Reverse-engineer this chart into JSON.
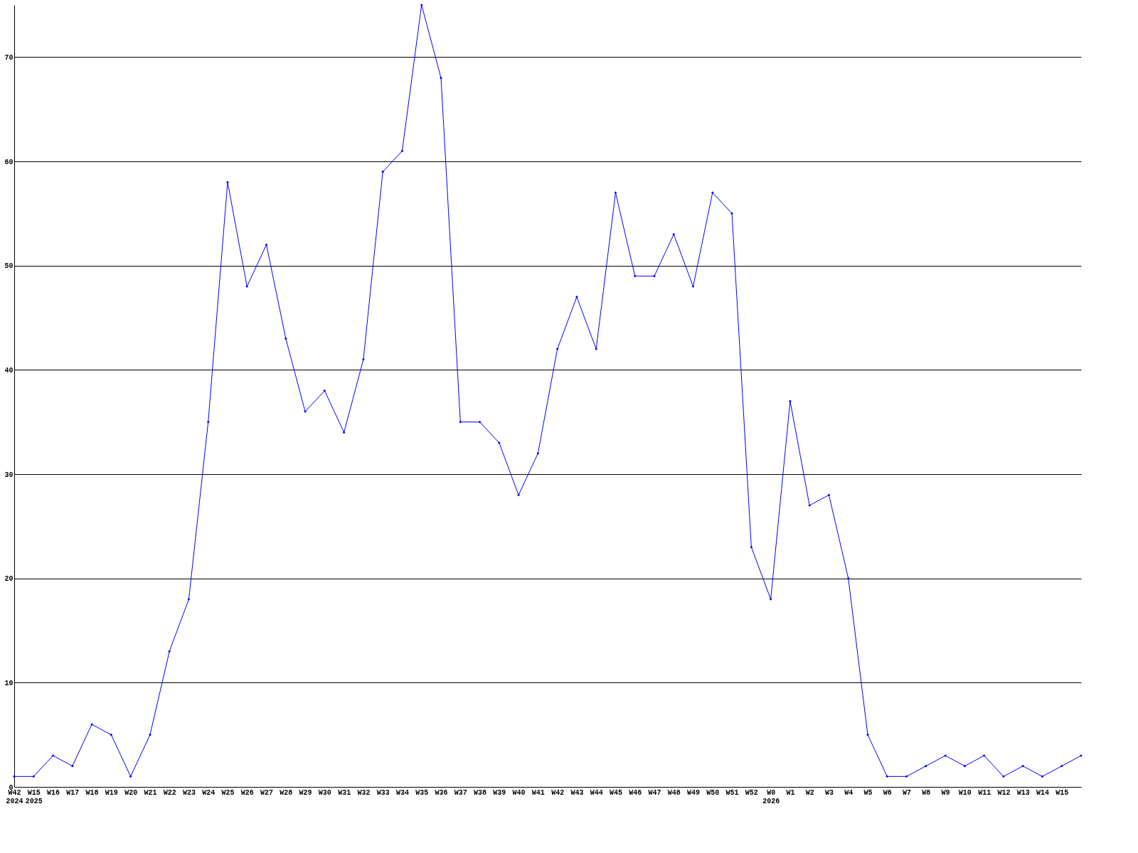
{
  "chart_data": {
    "type": "line",
    "categories": [
      "W42\n2024",
      "W15\n2025",
      "W16",
      "W17",
      "W18",
      "W19",
      "W20",
      "W21",
      "W22",
      "W23",
      "W24",
      "W25",
      "W26",
      "W27",
      "W28",
      "W29",
      "W30",
      "W31",
      "W32",
      "W33",
      "W34",
      "W35",
      "W36",
      "W37",
      "W38",
      "W39",
      "W40",
      "W41",
      "W42",
      "W43",
      "W44",
      "W45",
      "W46",
      "W47",
      "W48",
      "W49",
      "W50",
      "W51",
      "W52",
      "W0\n2026",
      "W1",
      "W2",
      "W3",
      "W4",
      "W5",
      "W6",
      "W7",
      "W8",
      "W9",
      "W10",
      "W11",
      "W12",
      "W13",
      "W14",
      "W15",
      null
    ],
    "series": [
      {
        "color": "#0000ff",
        "values": [
          1,
          1,
          3,
          2,
          6,
          5,
          1,
          5,
          13,
          18,
          35,
          58,
          48,
          52,
          43,
          36,
          38,
          34,
          41,
          59,
          61,
          75,
          68,
          35,
          35,
          33,
          28,
          32,
          42,
          47,
          42,
          57,
          49,
          49,
          53,
          48,
          57,
          55,
          23,
          18,
          37,
          27,
          28,
          20,
          5,
          1,
          1,
          2,
          3,
          2,
          3,
          1,
          2,
          1,
          2,
          3
        ]
      }
    ],
    "ylim": [
      0,
      75
    ],
    "yticks": [
      0,
      10,
      20,
      30,
      40,
      50,
      60,
      70
    ],
    "grid": "y",
    "marker": "diamond",
    "line_style": "solid"
  }
}
